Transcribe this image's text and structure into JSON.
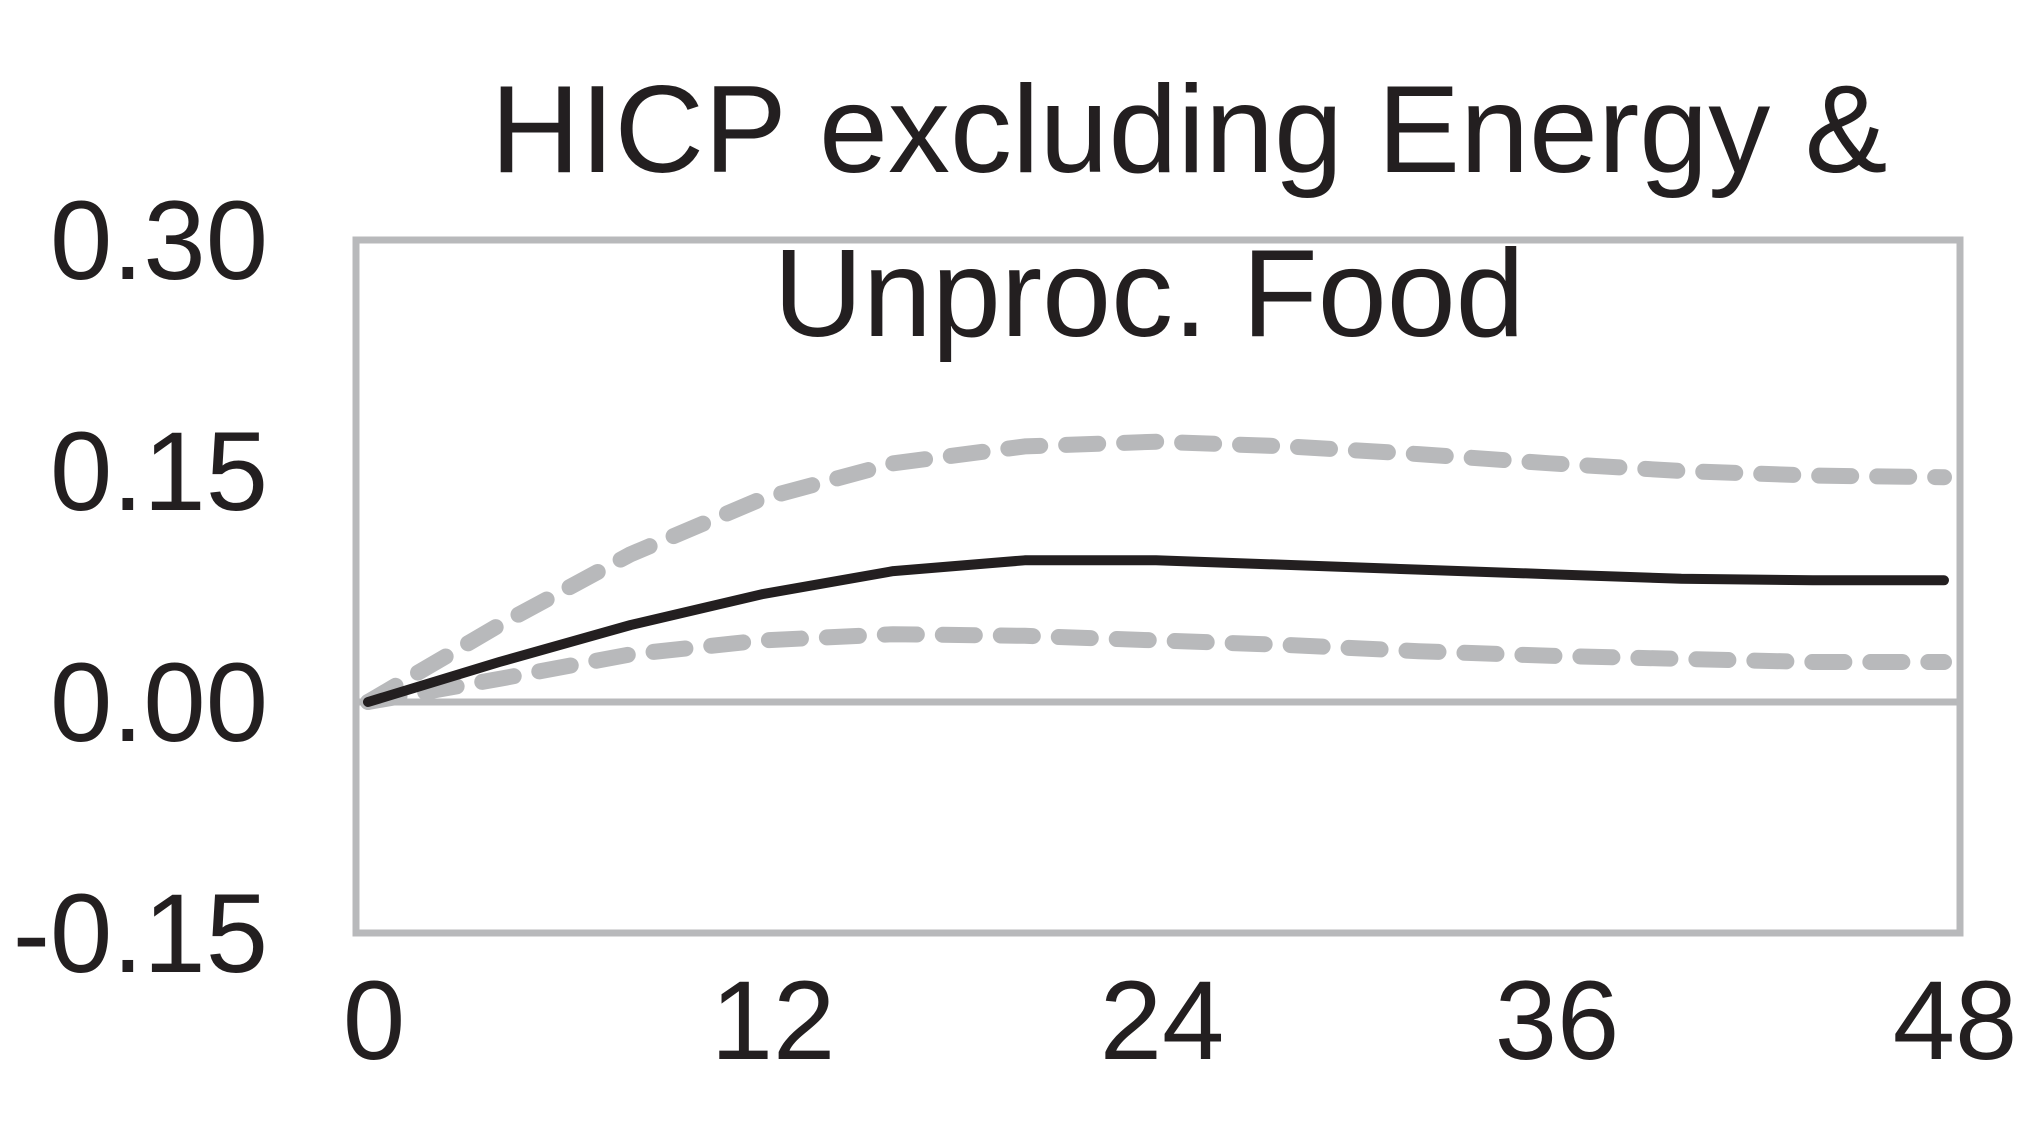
{
  "chart_data": {
    "type": "line",
    "title_lines": [
      "HICP excluding Energy &",
      "Unproc. Food"
    ],
    "xlabel": "",
    "ylabel": "",
    "xlim": [
      0,
      48
    ],
    "ylim": [
      -0.15,
      0.3
    ],
    "x_ticks": [
      "0",
      "12",
      "24",
      "36",
      "48"
    ],
    "y_ticks": [
      "0.30",
      "0.15",
      "0.00",
      "-0.15"
    ],
    "grid": false,
    "legend": "none",
    "colors": {
      "median": "#231f20",
      "bands": "#b8b9bb",
      "frame": "#b8b9bb",
      "zero_line": "#b8b9bb",
      "text": "#231f20"
    },
    "series": [
      {
        "role": "median",
        "style": "solid",
        "x": [
          0,
          4,
          8,
          12,
          16,
          20,
          24,
          28,
          32,
          36,
          40,
          44,
          48
        ],
        "y": [
          0.0,
          0.026,
          0.05,
          0.07,
          0.085,
          0.092,
          0.092,
          0.089,
          0.086,
          0.083,
          0.08,
          0.079,
          0.079
        ]
      },
      {
        "role": "upper-band",
        "style": "dashed",
        "x": [
          0,
          4,
          8,
          12,
          16,
          20,
          24,
          28,
          32,
          36,
          40,
          44,
          48
        ],
        "y": [
          0.0,
          0.05,
          0.096,
          0.132,
          0.155,
          0.166,
          0.169,
          0.166,
          0.161,
          0.155,
          0.15,
          0.147,
          0.146
        ]
      },
      {
        "role": "lower-band",
        "style": "dashed",
        "x": [
          0,
          4,
          8,
          12,
          16,
          20,
          24,
          28,
          32,
          36,
          40,
          44,
          48
        ],
        "y": [
          0.0,
          0.015,
          0.031,
          0.04,
          0.044,
          0.043,
          0.04,
          0.037,
          0.033,
          0.03,
          0.028,
          0.026,
          0.026
        ]
      }
    ]
  }
}
